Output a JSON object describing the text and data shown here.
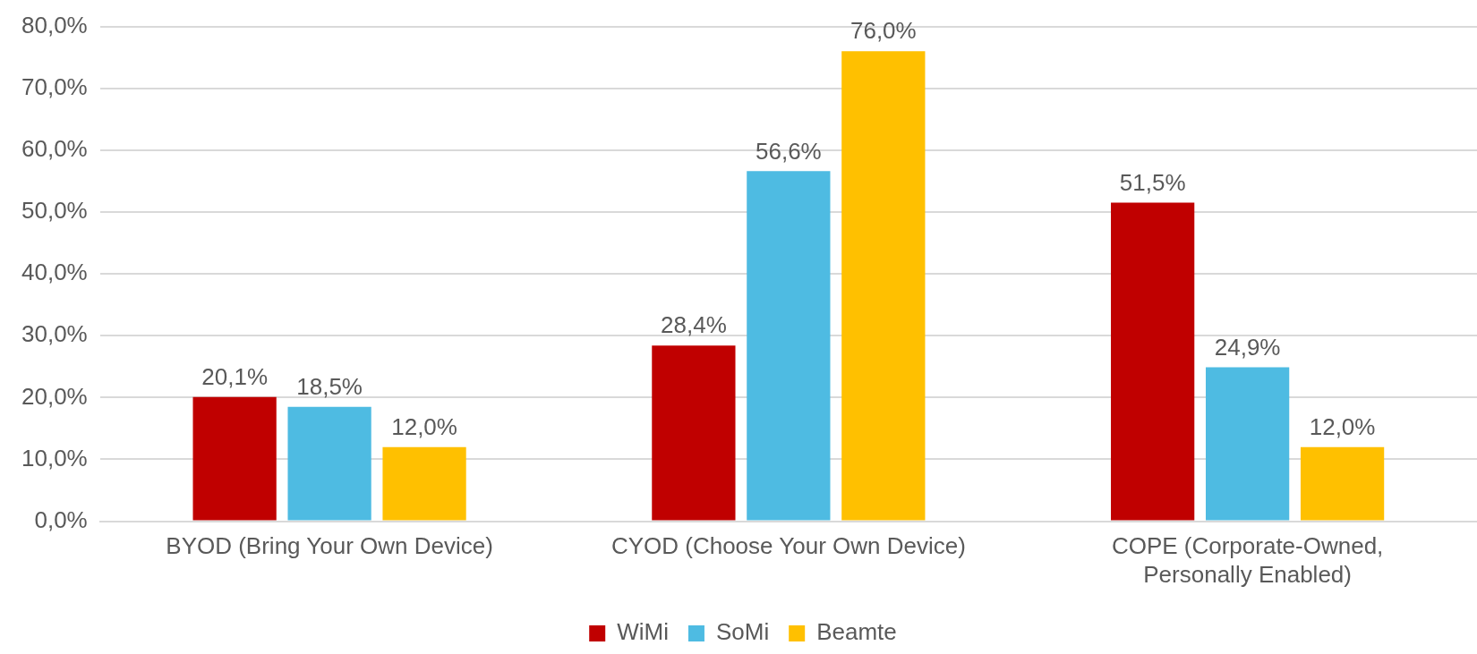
{
  "chart_data": {
    "type": "bar",
    "categories": [
      "BYOD (Bring Your Own Device)",
      "CYOD (Choose Your Own Device)",
      "COPE (Corporate-Owned,\nPersonally Enabled)"
    ],
    "series": [
      {
        "name": "WiMi",
        "color": "#c00000",
        "values": [
          20.1,
          28.4,
          51.5
        ],
        "value_labels": [
          "20,1%",
          "28,4%",
          "51,5%"
        ]
      },
      {
        "name": "SoMi",
        "color": "#4ebbe2",
        "values": [
          18.5,
          56.6,
          24.9
        ],
        "value_labels": [
          "18,5%",
          "56,6%",
          "24,9%"
        ]
      },
      {
        "name": "Beamte",
        "color": "#ffc000",
        "values": [
          12.0,
          76.0,
          12.0
        ],
        "value_labels": [
          "12,0%",
          "76,0%",
          "12,0%"
        ]
      }
    ],
    "ylim": [
      0,
      80
    ],
    "yticks": [
      {
        "value": 0,
        "label": "0,0%"
      },
      {
        "value": 10,
        "label": "10,0%"
      },
      {
        "value": 20,
        "label": "20,0%"
      },
      {
        "value": 30,
        "label": "30,0%"
      },
      {
        "value": 40,
        "label": "40,0%"
      },
      {
        "value": 50,
        "label": "50,0%"
      },
      {
        "value": 60,
        "label": "60,0%"
      },
      {
        "value": 70,
        "label": "70,0%"
      },
      {
        "value": 80,
        "label": "80,0%"
      }
    ],
    "grid": "y",
    "legend": "bottom"
  }
}
